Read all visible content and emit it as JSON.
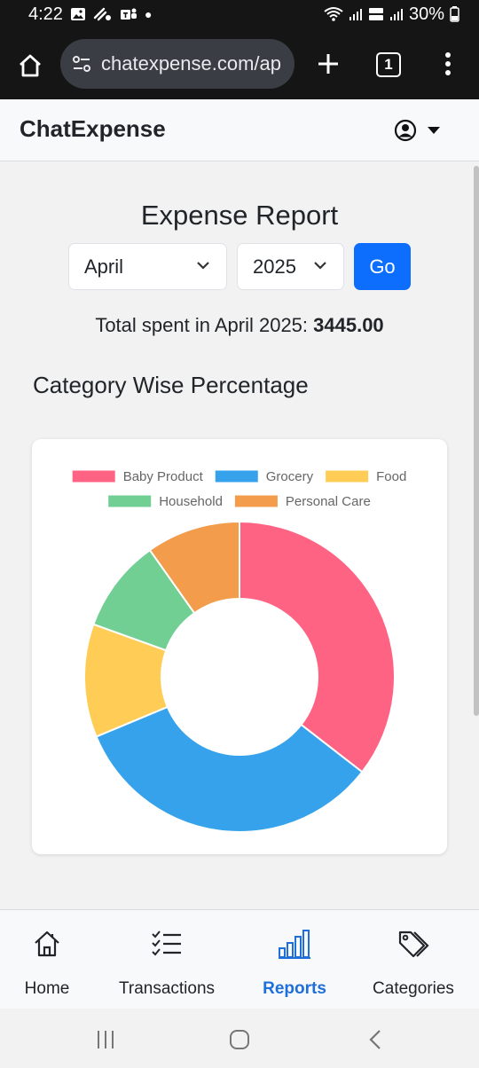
{
  "status_bar": {
    "time": "4:22",
    "battery": "30%"
  },
  "browser": {
    "url": "chatexpense.com/ap",
    "tab_count": "1"
  },
  "app": {
    "brand": "ChatExpense"
  },
  "report": {
    "title": "Expense Report",
    "month_selected": "April",
    "year_selected": "2025",
    "go_label": "Go",
    "total_prefix": "Total spent in April 2025: ",
    "total_value": "3445.00",
    "section_title": "Category Wise Percentage"
  },
  "chart_data": {
    "type": "pie",
    "variant": "doughnut",
    "legend_position": "top",
    "categories": [
      "Baby Product",
      "Grocery",
      "Food",
      "Household",
      "Personal Care"
    ],
    "values": [
      35.5,
      33.2,
      11.8,
      9.7,
      9.8
    ],
    "colors": [
      "#ff6384",
      "#36a2eb",
      "#ffcd56",
      "#72cf94",
      "#f29c4c"
    ]
  },
  "bottom_nav": {
    "items": [
      {
        "label": "Home",
        "icon": "home-icon",
        "active": false
      },
      {
        "label": "Transactions",
        "icon": "list-checks-icon",
        "active": false
      },
      {
        "label": "Reports",
        "icon": "bar-chart-icon",
        "active": true
      },
      {
        "label": "Categories",
        "icon": "tags-icon",
        "active": false
      }
    ]
  },
  "colors": {
    "primary": "#0d6efd",
    "active_nav": "#1e6fd9"
  }
}
